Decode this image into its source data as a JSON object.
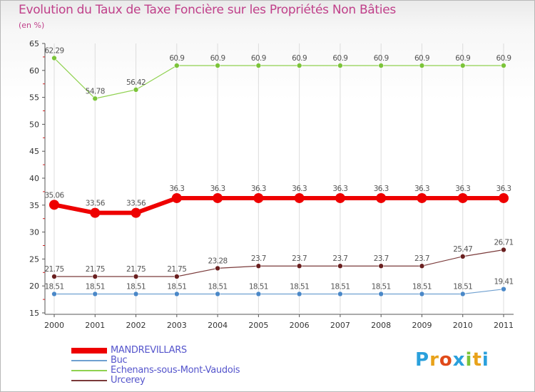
{
  "chart_data": {
    "type": "line",
    "title": "Evolution du Taux de Taxe Foncière sur les Propriétés Non Bâties",
    "subtitle": "(en %)",
    "categories": [
      "2000",
      "2001",
      "2002",
      "2003",
      "2004",
      "2005",
      "2006",
      "2007",
      "2008",
      "2009",
      "2010",
      "2011"
    ],
    "ylim": [
      15,
      65
    ],
    "yticks": [
      15,
      20,
      25,
      30,
      35,
      40,
      45,
      50,
      55,
      60,
      65
    ],
    "series": [
      {
        "name": "Echenans-sous-Mont-Vaudois",
        "color": "#8fd14f",
        "dot": "#7cc43a",
        "width": 1.2,
        "r": 3.5,
        "values": [
          62.29,
          54.78,
          56.42,
          60.9,
          60.9,
          60.9,
          60.9,
          60.9,
          60.9,
          60.9,
          60.9,
          60.9
        ],
        "labels": [
          "62.29",
          "54.78",
          "56.42",
          "60.9",
          "60.9",
          "60.9",
          "60.9",
          "60.9",
          "60.9",
          "60.9",
          "60.9",
          "60.9"
        ]
      },
      {
        "name": "MANDREVILLARS",
        "color": "#ee0000",
        "dot": "#ee0000",
        "width": 6,
        "r": 7,
        "values": [
          35.06,
          33.56,
          33.56,
          36.3,
          36.3,
          36.3,
          36.3,
          36.3,
          36.3,
          36.3,
          36.3,
          36.3
        ],
        "labels": [
          "35.06",
          "33.56",
          "33.56",
          "36.3",
          "36.3",
          "36.3",
          "36.3",
          "36.3",
          "36.3",
          "36.3",
          "36.3",
          "36.3"
        ]
      },
      {
        "name": "Urcerey",
        "color": "#7a3a3a",
        "dot": "#6a2020",
        "width": 1.2,
        "r": 3.5,
        "values": [
          21.75,
          21.75,
          21.75,
          21.75,
          23.28,
          23.7,
          23.7,
          23.7,
          23.7,
          23.7,
          25.47,
          26.71
        ],
        "labels": [
          "21.75",
          "21.75",
          "21.75",
          "21.75",
          "23.28",
          "23.7",
          "23.7",
          "23.7",
          "23.7",
          "23.7",
          "25.47",
          "26.71"
        ]
      },
      {
        "name": "Buc",
        "color": "#6fa0d0",
        "dot": "#4a88c8",
        "width": 1.2,
        "r": 3.5,
        "values": [
          18.51,
          18.51,
          18.51,
          18.51,
          18.51,
          18.51,
          18.51,
          18.51,
          18.51,
          18.51,
          18.51,
          19.41
        ],
        "labels": [
          "18.51",
          "18.51",
          "18.51",
          "18.51",
          "18.51",
          "18.51",
          "18.51",
          "18.51",
          "18.51",
          "18.51",
          "18.51",
          "19.41"
        ]
      }
    ],
    "legend": [
      {
        "name": "MANDREVILLARS",
        "color": "#ee0000",
        "thick": true
      },
      {
        "name": "Buc",
        "color": "#6fa0d0",
        "thick": false
      },
      {
        "name": "Echenans-sous-Mont-Vaudois",
        "color": "#8fd14f",
        "thick": false
      },
      {
        "name": "Urcerey",
        "color": "#7a3a3a",
        "thick": false
      }
    ]
  },
  "logo": {
    "letters": [
      "P",
      "r",
      "o",
      "x",
      "i",
      "t",
      "i"
    ],
    "colors": [
      "#2aa0dc",
      "#e8a21a",
      "#e04a1a",
      "#2aa0dc",
      "#7bc43a",
      "#e8a21a",
      "#2aa0dc"
    ]
  }
}
